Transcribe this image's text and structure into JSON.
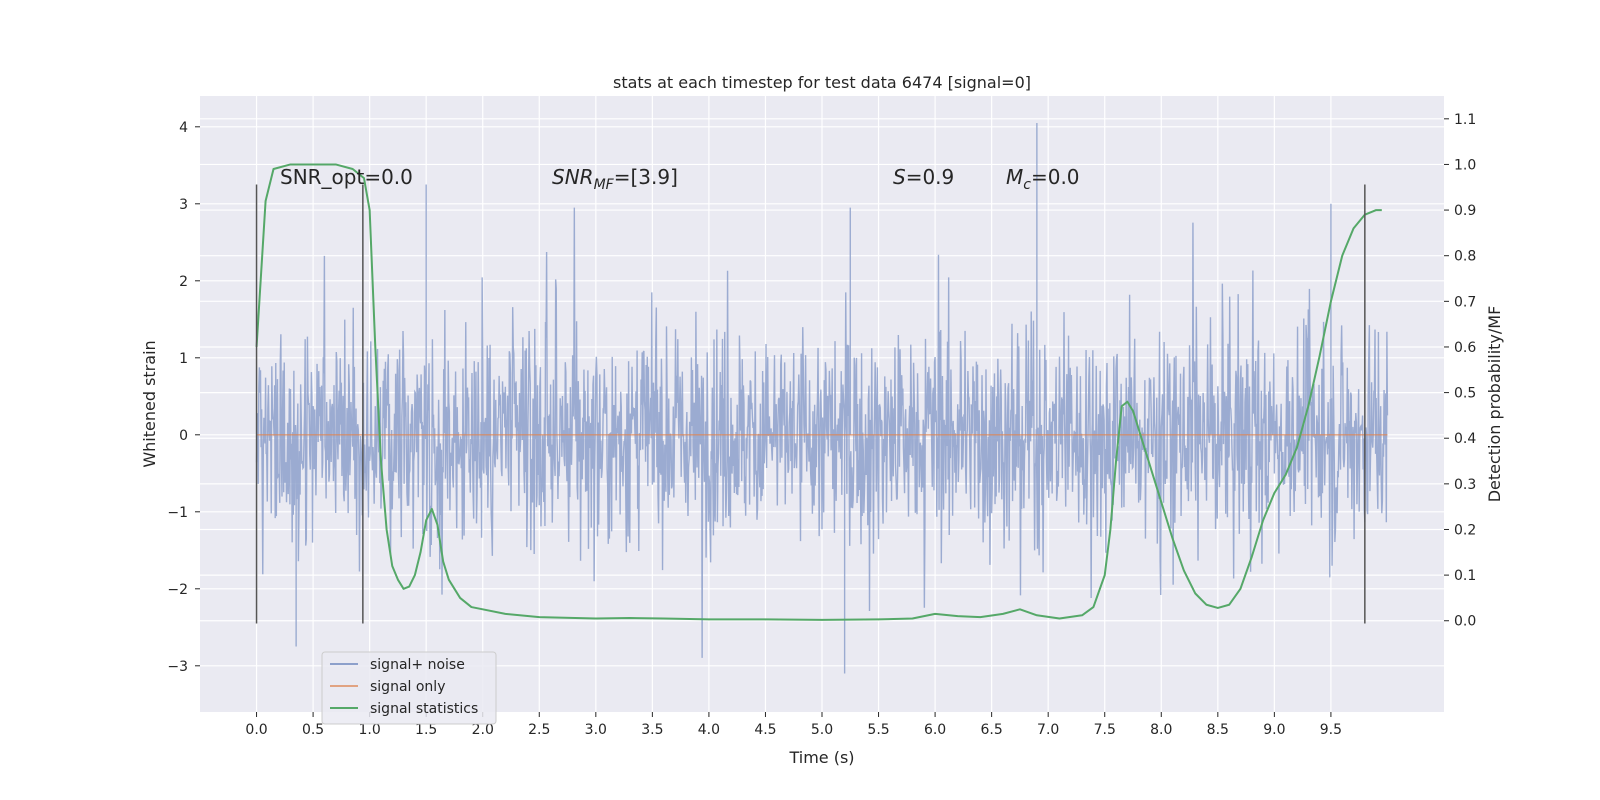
{
  "chart_data": {
    "type": "line",
    "title": "stats at each timestep for test data 6474 [signal=0]",
    "xlabel": "Time (s)",
    "ylabel": "Whitened strain",
    "y2label": "Detection probability/MF",
    "xlim": [
      -0.5,
      10.5
    ],
    "ylim": [
      -3.6,
      4.4
    ],
    "y2lim": [
      -0.2,
      1.15
    ],
    "x_ticks": [
      "0.0",
      "0.5",
      "1.0",
      "1.5",
      "2.0",
      "2.5",
      "3.0",
      "3.5",
      "4.0",
      "4.5",
      "5.0",
      "5.5",
      "6.0",
      "6.5",
      "7.0",
      "7.5",
      "8.0",
      "8.5",
      "9.0",
      "9.5"
    ],
    "y_ticks": [
      "4",
      "3",
      "2",
      "1",
      "0",
      "−1",
      "−2",
      "−3"
    ],
    "y2_ticks": [
      "1.1",
      "1.0",
      "0.9",
      "0.8",
      "0.7",
      "0.6",
      "0.5",
      "0.4",
      "0.3",
      "0.2",
      "0.1",
      "0.0"
    ],
    "annotations": {
      "snr_opt": "SNR_opt=0.0",
      "snr_mf_main": "SNR",
      "snr_mf_sub": "MF",
      "snr_mf_rest": "=[3.9]",
      "s_main": "S",
      "s_rest": "=0.9",
      "mc_main": "M",
      "mc_sub": "c",
      "mc_rest": "=0.0"
    },
    "grid": true,
    "legend_position": "lower-left",
    "series": [
      {
        "name": "signal+ noise",
        "color": "#8da0cb",
        "x_range": [
          0.0,
          10.0
        ],
        "typical_envelope": [
          -1.6,
          1.6
        ],
        "peaks": [
          [
            6.9,
            4.05
          ],
          [
            1.5,
            3.25
          ],
          [
            5.25,
            2.95
          ],
          [
            9.5,
            3.0
          ],
          [
            5.2,
            -3.1
          ],
          [
            0.35,
            -2.75
          ]
        ]
      },
      {
        "name": "signal only",
        "color": "#dd8452",
        "x": [
          0.0,
          10.0
        ],
        "y": [
          0.0,
          0.0
        ]
      },
      {
        "name": "signal statistics",
        "color": "#55a868",
        "axis": "right",
        "x": [
          0.0,
          0.08,
          0.15,
          0.3,
          0.5,
          0.7,
          0.85,
          0.95,
          1.0,
          1.05,
          1.1,
          1.15,
          1.2,
          1.25,
          1.3,
          1.35,
          1.4,
          1.45,
          1.5,
          1.55,
          1.6,
          1.65,
          1.7,
          1.8,
          1.9,
          2.0,
          2.2,
          2.5,
          3.0,
          3.3,
          3.6,
          4.0,
          4.5,
          5.0,
          5.5,
          5.8,
          6.0,
          6.2,
          6.4,
          6.6,
          6.75,
          6.9,
          7.1,
          7.3,
          7.4,
          7.5,
          7.55,
          7.6,
          7.65,
          7.7,
          7.75,
          7.8,
          7.9,
          8.0,
          8.1,
          8.2,
          8.3,
          8.4,
          8.5,
          8.6,
          8.7,
          8.8,
          8.9,
          9.0,
          9.1,
          9.2,
          9.3,
          9.4,
          9.5,
          9.6,
          9.7,
          9.8,
          9.9,
          9.95
        ],
        "y": [
          0.6,
          0.92,
          0.99,
          1.0,
          1.0,
          1.0,
          0.99,
          0.97,
          0.9,
          0.6,
          0.35,
          0.2,
          0.12,
          0.09,
          0.07,
          0.075,
          0.1,
          0.15,
          0.22,
          0.245,
          0.21,
          0.13,
          0.09,
          0.05,
          0.03,
          0.025,
          0.015,
          0.008,
          0.005,
          0.006,
          0.005,
          0.003,
          0.003,
          0.002,
          0.003,
          0.005,
          0.015,
          0.01,
          0.008,
          0.015,
          0.025,
          0.012,
          0.005,
          0.012,
          0.03,
          0.1,
          0.2,
          0.35,
          0.47,
          0.48,
          0.46,
          0.42,
          0.34,
          0.26,
          0.18,
          0.11,
          0.06,
          0.035,
          0.028,
          0.035,
          0.07,
          0.14,
          0.22,
          0.28,
          0.32,
          0.38,
          0.47,
          0.58,
          0.7,
          0.8,
          0.86,
          0.89,
          0.9,
          0.9
        ]
      }
    ],
    "vertical_lines": [
      {
        "x": 0.0,
        "y_top": 3.25,
        "y_bottom": -2.45
      },
      {
        "x": 0.94,
        "y_top": 3.25,
        "y_bottom": -2.45
      },
      {
        "x": 9.8,
        "y_top": 3.25,
        "y_bottom": -2.45
      }
    ]
  }
}
